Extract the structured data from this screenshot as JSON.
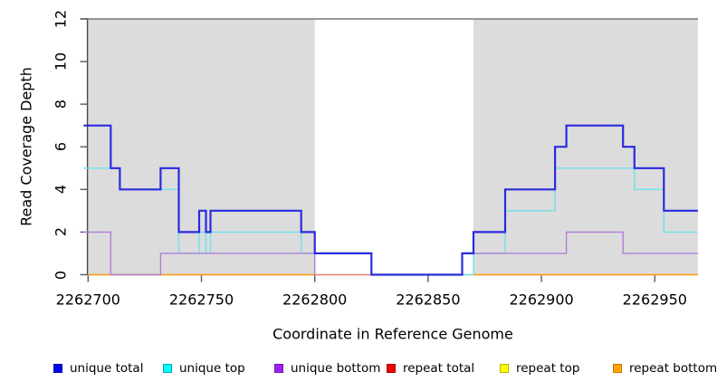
{
  "chart_data": {
    "type": "line",
    "subtype": "step-coverage-plot",
    "title": "",
    "xlabel": "Coordinate in Reference Genome",
    "ylabel": "Read Coverage Depth",
    "xlim": [
      2262698,
      2262969
    ],
    "ylim": [
      0,
      12
    ],
    "x_ticks": [
      2262700,
      2262750,
      2262800,
      2262850,
      2262900,
      2262950
    ],
    "x_tick_labels": [
      "2262700",
      "2262750",
      "2262800",
      "2262850",
      "2262900",
      "2262950"
    ],
    "y_ticks": [
      0,
      2,
      4,
      6,
      8,
      10,
      12
    ],
    "y_tick_labels": [
      "0",
      "2",
      "4",
      "6",
      "8",
      "10",
      "12"
    ],
    "grid": false,
    "reference_line_y": 12,
    "shaded_regions": [
      {
        "from": 2262700,
        "to": 2262800
      },
      {
        "from": 2262870,
        "to": 2262969
      }
    ],
    "colors": {
      "background": "#ffffff",
      "shaded_region": "#dcdcdc",
      "reference_line": "#808080",
      "axis": "#4a4a4a",
      "tick": "#5a5a5a",
      "text": "#000000"
    },
    "series": [
      {
        "name": "repeat top",
        "color": "#f5e900",
        "width": 1.3,
        "segments": [
          [
            [
              2262700,
              0
            ],
            [
              2262969,
              0
            ]
          ]
        ]
      },
      {
        "name": "repeat total",
        "color": "#e87878",
        "width": 1.3,
        "segments": [
          [
            [
              2262700,
              0
            ],
            [
              2262969,
              0
            ]
          ]
        ]
      },
      {
        "name": "repeat bottom",
        "color": "#ff9f1e",
        "width": 1.6,
        "segments": [
          [
            [
              2262700,
              0
            ],
            [
              2262800,
              0
            ]
          ],
          [
            [
              2262870,
              0
            ],
            [
              2262969,
              0
            ]
          ]
        ]
      },
      {
        "name": "unique top",
        "color": "#6fe2ec",
        "width": 1.4,
        "segments": [
          [
            [
              2262698,
              5
            ],
            [
              2262714,
              4
            ],
            [
              2262740,
              1
            ],
            [
              2262749,
              2
            ],
            [
              2262752,
              1
            ],
            [
              2262754,
              2
            ],
            [
              2262794,
              1
            ],
            [
              2262825,
              0
            ],
            [
              2262870,
              1
            ],
            [
              2262884,
              3
            ],
            [
              2262906,
              5
            ],
            [
              2262941,
              4
            ],
            [
              2262954,
              2
            ],
            [
              2262969,
              2
            ]
          ]
        ]
      },
      {
        "name": "unique bottom",
        "color": "#b07edb",
        "width": 1.4,
        "segments": [
          [
            [
              2262698,
              2
            ],
            [
              2262710,
              0
            ],
            [
              2262732,
              1
            ],
            [
              2262800,
              0
            ]
          ],
          [
            [
              2262865,
              0
            ],
            [
              2262865,
              1
            ],
            [
              2262911,
              2
            ],
            [
              2262936,
              1
            ],
            [
              2262969,
              1
            ]
          ]
        ]
      },
      {
        "name": "unique total",
        "color": "#2a2adf",
        "width": 2.2,
        "segments": [
          [
            [
              2262698,
              7
            ],
            [
              2262710,
              5
            ],
            [
              2262714,
              4
            ],
            [
              2262732,
              5
            ],
            [
              2262740,
              2
            ],
            [
              2262749,
              3
            ],
            [
              2262752,
              2
            ],
            [
              2262754,
              3
            ],
            [
              2262794,
              2
            ],
            [
              2262800,
              1
            ],
            [
              2262825,
              0
            ],
            [
              2262865,
              1
            ],
            [
              2262870,
              2
            ],
            [
              2262884,
              4
            ],
            [
              2262906,
              6
            ],
            [
              2262911,
              7
            ],
            [
              2262936,
              6
            ],
            [
              2262941,
              5
            ],
            [
              2262954,
              3
            ],
            [
              2262969,
              3
            ]
          ]
        ]
      }
    ],
    "legend": {
      "position": "bottom",
      "items": [
        {
          "label": "unique total",
          "fill": "#0000f0",
          "border": "#0000a6"
        },
        {
          "label": "unique top",
          "fill": "#00ffff",
          "border": "#00a8b4"
        },
        {
          "label": "unique bottom",
          "fill": "#a020f0",
          "border": "#7314b8"
        },
        {
          "label": "repeat total",
          "fill": "#f00000",
          "border": "#a60000"
        },
        {
          "label": "repeat top",
          "fill": "#ffff00",
          "border": "#b4b400"
        },
        {
          "label": "repeat bottom",
          "fill": "#ffa500",
          "border": "#c27c00"
        }
      ]
    }
  }
}
